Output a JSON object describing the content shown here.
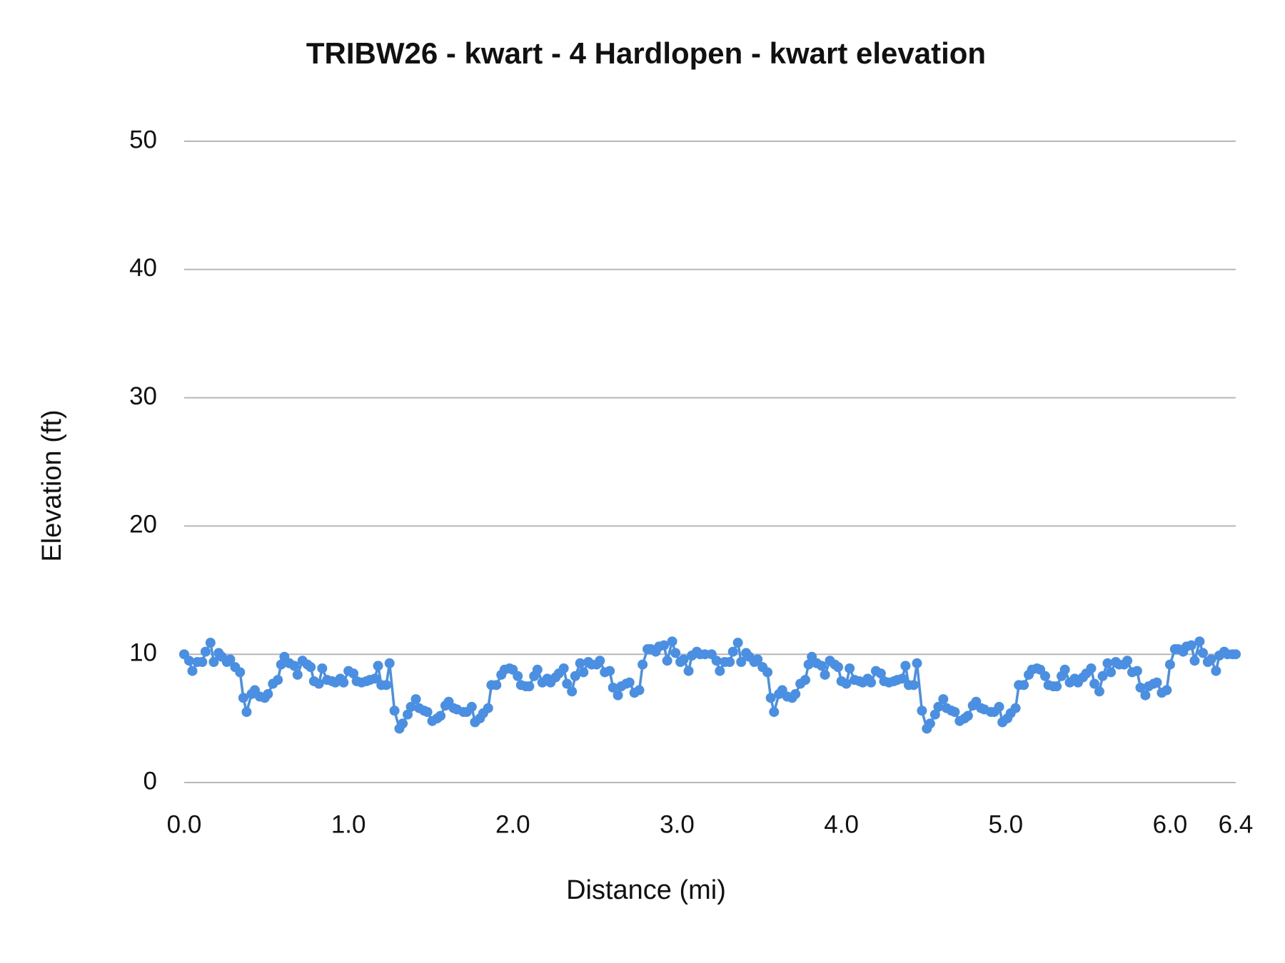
{
  "chart_data": {
    "type": "line",
    "title": "TRIBW26 - kwart - 4 Hardlopen - kwart elevation",
    "xlabel": "Distance (mi)",
    "ylabel": "Elevation (ft)",
    "x": [
      0.0,
      0.03,
      0.05,
      0.08,
      0.11,
      0.13,
      0.16,
      0.18,
      0.21,
      0.23,
      0.26,
      0.28,
      0.31,
      0.34,
      0.36,
      0.38,
      0.41,
      0.43,
      0.46,
      0.49,
      0.51,
      0.54,
      0.57,
      0.59,
      0.61,
      0.64,
      0.67,
      0.69,
      0.72,
      0.75,
      0.77,
      0.79,
      0.82,
      0.84,
      0.87,
      0.9,
      0.92,
      0.95,
      0.97,
      1.0,
      1.03,
      1.05,
      1.08,
      1.11,
      1.13,
      1.16,
      1.18,
      1.2,
      1.23,
      1.25,
      1.28,
      1.31,
      1.33,
      1.36,
      1.38,
      1.41,
      1.43,
      1.46,
      1.48,
      1.51,
      1.54,
      1.56,
      1.59,
      1.61,
      1.64,
      1.66,
      1.7,
      1.72,
      1.75,
      1.77,
      1.8,
      1.82,
      1.85,
      1.87,
      1.9,
      1.93,
      1.95,
      1.98,
      2.0,
      2.03,
      2.05,
      2.08,
      2.1,
      2.13,
      2.15,
      2.18,
      2.21,
      2.23,
      2.26,
      2.28,
      2.31,
      2.33,
      2.36,
      2.38,
      2.41,
      2.43,
      2.46,
      2.48,
      2.51,
      2.53,
      2.56,
      2.59,
      2.61,
      2.64,
      2.66,
      2.69,
      2.71,
      2.74,
      2.77,
      2.79,
      2.82,
      2.84,
      2.87,
      2.89,
      2.92,
      2.94,
      2.97,
      2.99,
      3.02,
      3.04,
      3.07,
      3.09,
      3.12,
      3.14,
      3.17,
      3.21,
      3.24,
      3.26,
      3.29,
      3.32,
      3.34,
      3.37,
      3.39,
      3.42,
      3.44,
      3.47,
      3.49,
      3.52,
      3.55,
      3.57,
      3.59,
      3.62,
      3.64,
      3.67,
      3.7,
      3.72,
      3.75,
      3.78,
      3.8,
      3.82,
      3.85,
      3.88,
      3.9,
      3.93,
      3.96,
      3.98,
      4.0,
      4.03,
      4.05,
      4.08,
      4.11,
      4.13,
      4.16,
      4.18,
      4.21,
      4.24,
      4.26,
      4.29,
      4.32,
      4.34,
      4.37,
      4.39,
      4.41,
      4.44,
      4.46,
      4.49,
      4.52,
      4.54,
      4.57,
      4.59,
      4.62,
      4.64,
      4.67,
      4.69,
      4.72,
      4.75,
      4.77,
      4.8,
      4.82,
      4.85,
      4.87,
      4.91,
      4.93,
      4.96,
      4.98,
      5.01,
      5.03,
      5.06,
      5.08,
      5.11,
      5.14,
      5.16,
      5.19,
      5.21,
      5.24,
      5.26,
      5.29,
      5.31,
      5.34,
      5.36,
      5.39,
      5.42,
      5.44,
      5.47,
      5.49,
      5.52,
      5.54,
      5.57,
      5.59,
      5.62,
      5.64,
      5.67,
      5.69,
      5.72,
      5.74,
      5.77,
      5.8,
      5.82,
      5.85,
      5.87,
      5.9,
      5.92,
      5.95,
      5.98,
      6.0,
      6.03,
      6.05,
      6.08,
      6.1,
      6.13,
      6.15,
      6.18,
      6.2,
      6.23,
      6.25,
      6.28,
      6.3,
      6.33,
      6.35,
      6.38,
      6.4
    ],
    "values": [
      10.0,
      9.5,
      8.7,
      9.4,
      9.4,
      10.2,
      10.9,
      9.4,
      10.1,
      9.8,
      9.4,
      9.6,
      9.0,
      8.6,
      6.6,
      5.5,
      6.9,
      7.2,
      6.7,
      6.6,
      6.9,
      7.7,
      8.0,
      9.2,
      9.8,
      9.3,
      9.1,
      8.4,
      9.5,
      9.2,
      9.0,
      7.9,
      7.7,
      8.9,
      8.0,
      7.9,
      7.8,
      8.1,
      7.8,
      8.7,
      8.5,
      7.9,
      7.8,
      7.9,
      8.0,
      8.1,
      9.1,
      7.6,
      7.6,
      9.3,
      5.6,
      4.2,
      4.6,
      5.3,
      5.9,
      6.5,
      5.8,
      5.6,
      5.5,
      4.8,
      5.0,
      5.2,
      6.0,
      6.3,
      5.8,
      5.7,
      5.5,
      5.5,
      5.9,
      4.7,
      5.0,
      5.4,
      5.8,
      7.6,
      7.6,
      8.4,
      8.8,
      8.9,
      8.8,
      8.3,
      7.6,
      7.5,
      7.5,
      8.3,
      8.8,
      7.8,
      8.1,
      7.8,
      8.2,
      8.5,
      8.9,
      7.7,
      7.1,
      8.3,
      9.3,
      8.6,
      9.4,
      9.2,
      9.2,
      9.5,
      8.6,
      8.7,
      7.4,
      6.8,
      7.5,
      7.7,
      7.8,
      7.0,
      7.2,
      9.2,
      10.4,
      10.4,
      10.2,
      10.6,
      10.7,
      9.5,
      11.0,
      10.1,
      9.4,
      9.6,
      8.7,
      9.9,
      10.2,
      10.0,
      10.0,
      10.0,
      9.5,
      8.7,
      9.4,
      9.4,
      10.2,
      10.9,
      9.4,
      10.1,
      9.8,
      9.4,
      9.6,
      9.0,
      8.6,
      6.6,
      5.5,
      6.9,
      7.2,
      6.7,
      6.6,
      6.9,
      7.7,
      8.0,
      9.2,
      9.8,
      9.3,
      9.1,
      8.4,
      9.5,
      9.2,
      9.0,
      7.9,
      7.7,
      8.9,
      8.0,
      7.9,
      7.8,
      8.1,
      7.8,
      8.7,
      8.5,
      7.9,
      7.8,
      7.9,
      8.0,
      8.1,
      9.1,
      7.6,
      7.6,
      9.3,
      5.6,
      4.2,
      4.6,
      5.3,
      5.9,
      6.5,
      5.8,
      5.6,
      5.5,
      4.8,
      5.0,
      5.2,
      6.0,
      6.3,
      5.8,
      5.7,
      5.5,
      5.5,
      5.9,
      4.7,
      5.0,
      5.4,
      5.8,
      7.6,
      7.6,
      8.4,
      8.8,
      8.9,
      8.8,
      8.3,
      7.6,
      7.5,
      7.5,
      8.3,
      8.8,
      7.8,
      8.1,
      7.8,
      8.2,
      8.5,
      8.9,
      7.7,
      7.1,
      8.3,
      9.3,
      8.6,
      9.4,
      9.2,
      9.2,
      9.5,
      8.6,
      8.7,
      7.4,
      6.8,
      7.5,
      7.7,
      7.8,
      7.0,
      7.2,
      9.2,
      10.4,
      10.4,
      10.2,
      10.6,
      10.7,
      9.5,
      11.0,
      10.1,
      9.4,
      9.6,
      8.7,
      9.9,
      10.2,
      10.0,
      10.0,
      10.0
    ],
    "color": "#4a8fe2",
    "xlim": [
      0,
      6.4
    ],
    "xticks": [
      {
        "value": 0,
        "label": "0.0"
      },
      {
        "value": 1,
        "label": "1.0"
      },
      {
        "value": 2,
        "label": "2.0"
      },
      {
        "value": 3,
        "label": "3.0"
      },
      {
        "value": 4,
        "label": "4.0"
      },
      {
        "value": 5,
        "label": "5.0"
      },
      {
        "value": 6,
        "label": "6.0"
      },
      6.4
    ],
    "ylim": [
      0,
      50
    ],
    "yticks": [
      0,
      10,
      20,
      30,
      40,
      50
    ],
    "grid": true
  }
}
